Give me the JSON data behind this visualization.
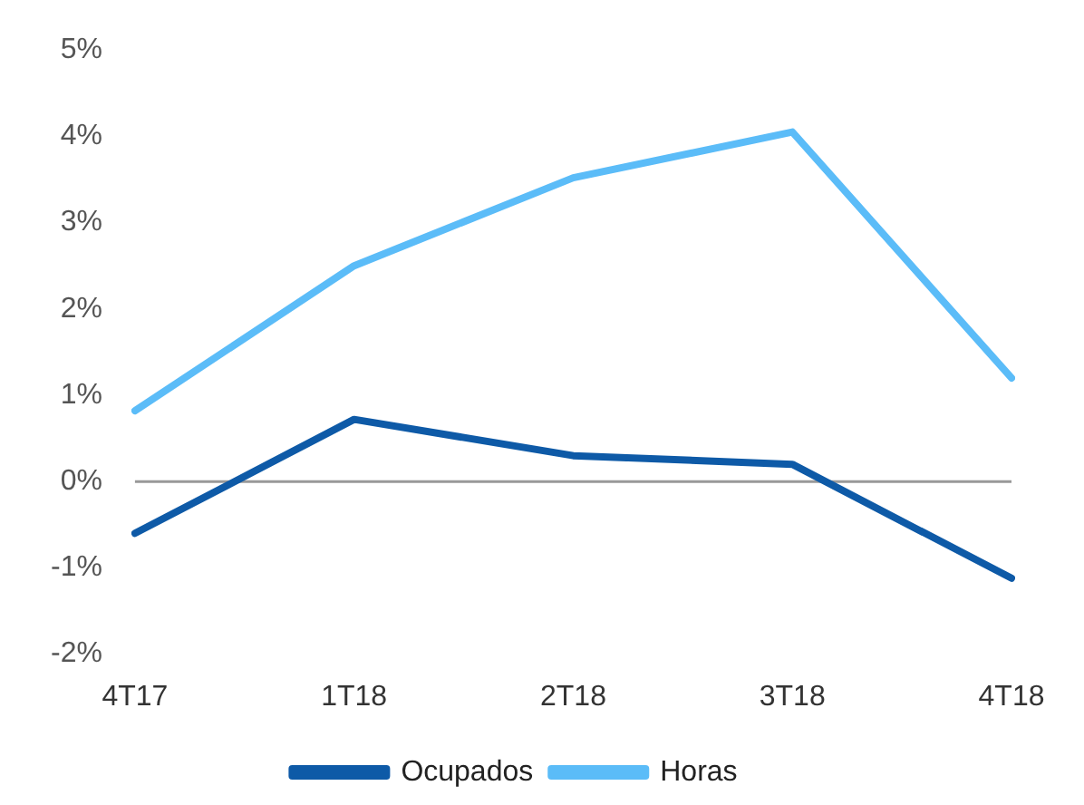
{
  "chart_data": {
    "type": "line",
    "categories": [
      "4T17",
      "1T18",
      "2T18",
      "3T18",
      "4T18"
    ],
    "series": [
      {
        "name": "Ocupados",
        "color": "#0e5aa7",
        "values": [
          -0.6,
          0.72,
          0.3,
          0.2,
          -1.12
        ]
      },
      {
        "name": "Horas",
        "color": "#5bbcf8",
        "values": [
          0.82,
          2.5,
          3.52,
          4.05,
          1.2
        ]
      }
    ],
    "ylim": [
      -2,
      5
    ],
    "yticks": [
      {
        "value": -2,
        "label": "-2%"
      },
      {
        "value": -1,
        "label": "-1%"
      },
      {
        "value": 0,
        "label": "0%"
      },
      {
        "value": 1,
        "label": "1%"
      },
      {
        "value": 2,
        "label": "2%"
      },
      {
        "value": 3,
        "label": "3%"
      },
      {
        "value": 4,
        "label": "4%"
      },
      {
        "value": 5,
        "label": "5%"
      }
    ],
    "ref_lines": [
      {
        "axis": "y",
        "value": 0,
        "color": "#999999"
      }
    ],
    "grid": false,
    "legend": "bottom",
    "marker": "none",
    "line_style": "solid"
  }
}
